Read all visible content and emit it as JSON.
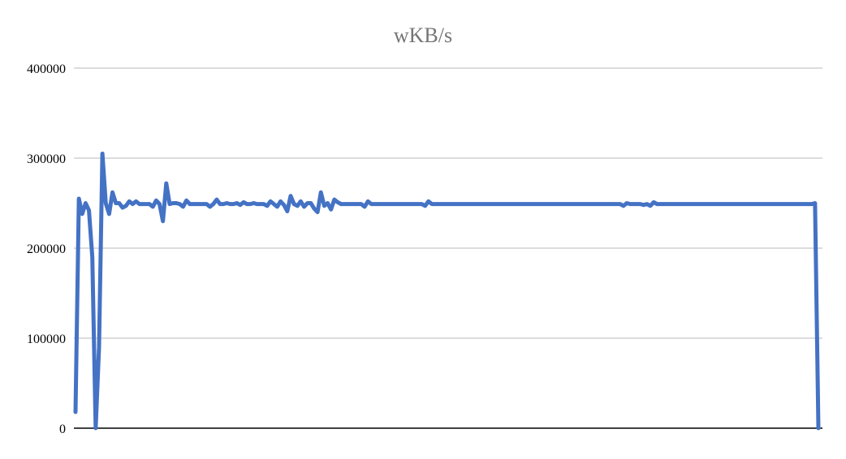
{
  "chart_data": {
    "type": "line",
    "title": "wKB/s",
    "xlabel": "",
    "ylabel": "",
    "ylim": [
      0,
      400000
    ],
    "yticks": [
      "0",
      "100000",
      "200000",
      "300000",
      "400000"
    ],
    "y_tick_values": [
      0,
      100000,
      200000,
      300000,
      400000
    ],
    "grid": true,
    "legend": "none",
    "series_color": "#4472C4",
    "series": [
      {
        "values": [
          18000,
          255000,
          238000,
          250000,
          242000,
          190000,
          0,
          90000,
          305000,
          250000,
          238000,
          262000,
          250000,
          250000,
          245000,
          247000,
          252000,
          249000,
          252000,
          249000,
          249000,
          249000,
          249000,
          246000,
          253000,
          249000,
          230000,
          272000,
          249000,
          250000,
          250000,
          249000,
          246000,
          253000,
          249000,
          249000,
          249000,
          249000,
          249000,
          249000,
          246000,
          249000,
          254000,
          249000,
          249000,
          250000,
          249000,
          249000,
          250000,
          248000,
          251000,
          249000,
          249000,
          250000,
          249000,
          249000,
          249000,
          247000,
          252000,
          249000,
          246000,
          252000,
          248000,
          241000,
          258000,
          249000,
          247000,
          252000,
          246000,
          250000,
          250000,
          244000,
          240000,
          262000,
          247000,
          250000,
          243000,
          254000,
          251000,
          249000,
          249000,
          249000,
          249000,
          249000,
          249000,
          249000,
          246000,
          252000,
          249000,
          249000,
          249000,
          249000,
          249000,
          249000,
          249000,
          249000,
          249000,
          249000,
          249000,
          249000,
          249000,
          249000,
          249000,
          249000,
          247000,
          252000,
          249000,
          249000,
          249000,
          249000,
          249000,
          249000,
          249000,
          249000,
          249000,
          249000,
          249000,
          249000,
          249000,
          249000,
          249000,
          249000,
          249000,
          249000,
          249000,
          249000,
          249000,
          249000,
          249000,
          249000,
          249000,
          249000,
          249000,
          249000,
          249000,
          249000,
          249000,
          249000,
          249000,
          249000,
          249000,
          249000,
          249000,
          249000,
          249000,
          249000,
          249000,
          249000,
          249000,
          249000,
          249000,
          249000,
          249000,
          249000,
          249000,
          249000,
          249000,
          249000,
          249000,
          249000,
          249000,
          249000,
          249000,
          247000,
          250000,
          249000,
          249000,
          249000,
          249000,
          248000,
          249000,
          247000,
          251000,
          249000,
          249000,
          249000,
          249000,
          249000,
          249000,
          249000,
          249000,
          249000,
          249000,
          249000,
          249000,
          249000,
          249000,
          249000,
          249000,
          249000,
          249000,
          249000,
          249000,
          249000,
          249000,
          249000,
          249000,
          249000,
          249000,
          249000,
          249000,
          249000,
          249000,
          249000,
          249000,
          249000,
          249000,
          249000,
          249000,
          249000,
          249000,
          249000,
          249000,
          249000,
          249000,
          249000,
          249000,
          249000,
          249000,
          249000,
          250000,
          0
        ]
      }
    ]
  }
}
